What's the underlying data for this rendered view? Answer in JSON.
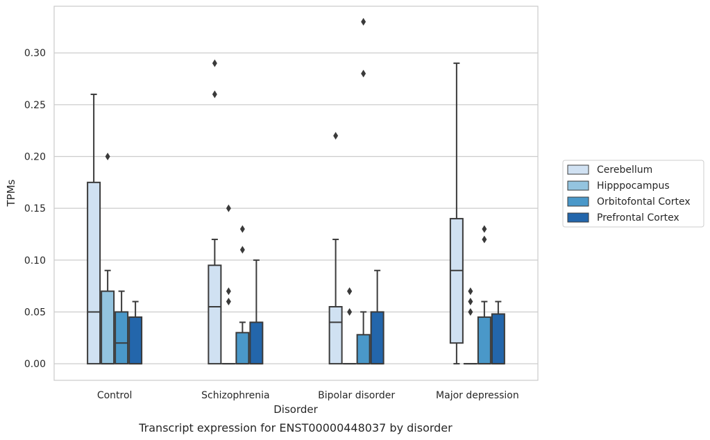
{
  "chart_data": {
    "type": "boxplot",
    "title": "",
    "caption": "Transcript expression for ENST00000448037 by disorder",
    "xlabel": "Disorder",
    "ylabel": "TPMs",
    "ylim": [
      -0.016,
      0.345
    ],
    "yticks": [
      0.0,
      0.05,
      0.1,
      0.15,
      0.2,
      0.25,
      0.3
    ],
    "ytick_labels": [
      "0.00",
      "0.05",
      "0.10",
      "0.15",
      "0.20",
      "0.25",
      "0.30"
    ],
    "grid": "horizontal",
    "legend_position": "right",
    "categories": [
      "Control",
      "Schizophrenia",
      "Bipolar disorder",
      "Major depression"
    ],
    "series": [
      {
        "name": "Cerebellum",
        "color": "#d0e1f2",
        "boxes": [
          {
            "q1": 0.0,
            "median": 0.05,
            "q3": 0.175,
            "whisker_low": 0.0,
            "whisker_high": 0.26,
            "outliers": []
          },
          {
            "q1": 0.0,
            "median": 0.055,
            "q3": 0.095,
            "whisker_low": 0.0,
            "whisker_high": 0.12,
            "outliers": [
              0.26,
              0.29
            ]
          },
          {
            "q1": 0.0,
            "median": 0.04,
            "q3": 0.055,
            "whisker_low": 0.0,
            "whisker_high": 0.12,
            "outliers": [
              0.22
            ]
          },
          {
            "q1": 0.02,
            "median": 0.09,
            "q3": 0.14,
            "whisker_low": 0.0,
            "whisker_high": 0.29,
            "outliers": []
          }
        ]
      },
      {
        "name": "Hipppocampus",
        "color": "#94c4df",
        "boxes": [
          {
            "q1": 0.0,
            "median": 0.0,
            "q3": 0.07,
            "whisker_low": 0.0,
            "whisker_high": 0.09,
            "outliers": [
              0.2
            ]
          },
          {
            "q1": 0.0,
            "median": 0.0,
            "q3": 0.0,
            "whisker_low": 0.0,
            "whisker_high": 0.0,
            "outliers": [
              0.06,
              0.07,
              0.15
            ]
          },
          {
            "q1": 0.0,
            "median": 0.0,
            "q3": 0.0,
            "whisker_low": 0.0,
            "whisker_high": 0.0,
            "outliers": [
              0.05,
              0.07,
              0.07
            ]
          },
          {
            "q1": 0.0,
            "median": 0.0,
            "q3": 0.0,
            "whisker_low": 0.0,
            "whisker_high": 0.0,
            "outliers": [
              0.05,
              0.06,
              0.07
            ]
          }
        ]
      },
      {
        "name": "Orbitofontal Cortex",
        "color": "#4a98c9",
        "boxes": [
          {
            "q1": 0.0,
            "median": 0.02,
            "q3": 0.05,
            "whisker_low": 0.0,
            "whisker_high": 0.07,
            "outliers": []
          },
          {
            "q1": 0.0,
            "median": 0.0,
            "q3": 0.03,
            "whisker_low": 0.0,
            "whisker_high": 0.04,
            "outliers": [
              0.11,
              0.13
            ]
          },
          {
            "q1": 0.0,
            "median": 0.0,
            "q3": 0.028,
            "whisker_low": 0.0,
            "whisker_high": 0.05,
            "outliers": [
              0.28,
              0.33
            ]
          },
          {
            "q1": 0.0,
            "median": 0.0,
            "q3": 0.045,
            "whisker_low": 0.0,
            "whisker_high": 0.06,
            "outliers": [
              0.12,
              0.13
            ]
          }
        ]
      },
      {
        "name": "Prefrontal Cortex",
        "color": "#2366ab",
        "boxes": [
          {
            "q1": 0.0,
            "median": 0.0,
            "q3": 0.045,
            "whisker_low": 0.0,
            "whisker_high": 0.06,
            "outliers": []
          },
          {
            "q1": 0.0,
            "median": 0.0,
            "q3": 0.04,
            "whisker_low": 0.0,
            "whisker_high": 0.1,
            "outliers": []
          },
          {
            "q1": 0.0,
            "median": 0.0,
            "q3": 0.05,
            "whisker_low": 0.0,
            "whisker_high": 0.09,
            "outliers": []
          },
          {
            "q1": 0.0,
            "median": 0.0,
            "q3": 0.048,
            "whisker_low": 0.0,
            "whisker_high": 0.06,
            "outliers": []
          }
        ]
      }
    ]
  }
}
